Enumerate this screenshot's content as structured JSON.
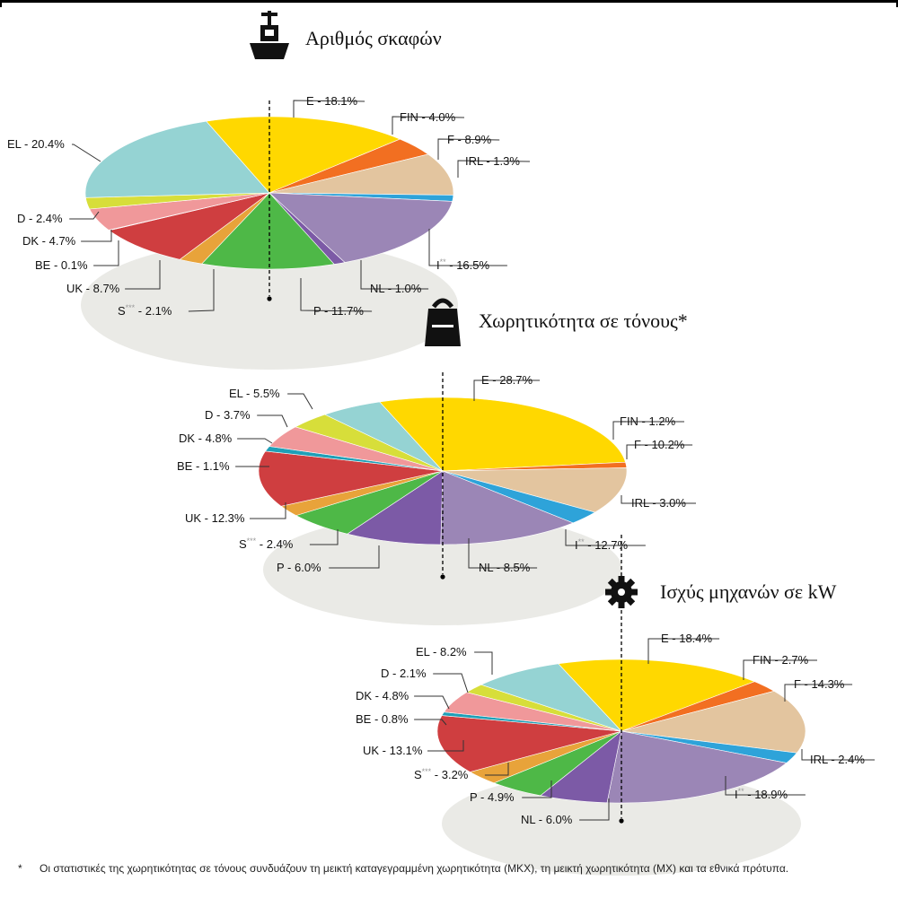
{
  "colors": {
    "E": "#ffd800",
    "FIN": "#f26f21",
    "F": "#e3c59f",
    "IRL": "#2ea3d9",
    "I": "#9b86b6",
    "NL": "#7c5aa6",
    "P": "#4eb847",
    "S": "#e8a33a",
    "UK": "#cf3e40",
    "BE": "#1f9fb7",
    "DK": "#f0989a",
    "D": "#d7de3a",
    "EL": "#95d3d3",
    "shadow": "#eaeae6"
  },
  "chart_data": [
    {
      "type": "pie",
      "title": "Αριθμός σκαφών",
      "icon": "boat-icon",
      "slices": [
        {
          "code": "E",
          "label": "E - 18.1%",
          "value": 18.1
        },
        {
          "code": "FIN",
          "label": "FIN - 4.0%",
          "value": 4.0
        },
        {
          "code": "F",
          "label": "F - 8.9%",
          "value": 8.9
        },
        {
          "code": "IRL",
          "label": "IRL - 1.3%",
          "value": 1.3
        },
        {
          "code": "I",
          "label": "I",
          "sup": "**",
          "tail": " - 16.5%",
          "value": 16.5
        },
        {
          "code": "NL",
          "label": "NL - 1.0%",
          "value": 1.0
        },
        {
          "code": "P",
          "label": "P - 11.7%",
          "value": 11.7
        },
        {
          "code": "S",
          "label": "S",
          "sup": "***",
          "tail": " - 2.1%",
          "value": 2.1
        },
        {
          "code": "UK",
          "label": "UK - 8.7%",
          "value": 8.7
        },
        {
          "code": "BE",
          "label": "BE - 0.1%",
          "value": 0.1
        },
        {
          "code": "DK",
          "label": "DK - 4.7%",
          "value": 4.7
        },
        {
          "code": "D",
          "label": "D - 2.4%",
          "value": 2.4
        },
        {
          "code": "EL",
          "label": "EL - 20.4%",
          "value": 20.4
        }
      ]
    },
    {
      "type": "pie",
      "title": "Χωρητικότητα σε τόνους*",
      "icon": "weight-icon",
      "slices": [
        {
          "code": "E",
          "label": "E - 28.7%",
          "value": 28.7
        },
        {
          "code": "FIN",
          "label": "FIN - 1.2%",
          "value": 1.2
        },
        {
          "code": "F",
          "label": "F - 10.2%",
          "value": 10.2
        },
        {
          "code": "IRL",
          "label": "IRL - 3.0%",
          "value": 3.0
        },
        {
          "code": "I",
          "label": "I",
          "sup": "**",
          "tail": " - 12.7%",
          "value": 12.7
        },
        {
          "code": "NL",
          "label": "NL - 8.5%",
          "value": 8.5
        },
        {
          "code": "P",
          "label": "P - 6.0%",
          "value": 6.0
        },
        {
          "code": "S",
          "label": "S",
          "sup": "***",
          "tail": " - 2.4%",
          "value": 2.4
        },
        {
          "code": "UK",
          "label": "UK - 12.3%",
          "value": 12.3
        },
        {
          "code": "BE",
          "label": "BE - 1.1%",
          "value": 1.1
        },
        {
          "code": "DK",
          "label": "DK - 4.8%",
          "value": 4.8
        },
        {
          "code": "D",
          "label": "D - 3.7%",
          "value": 3.7
        },
        {
          "code": "EL",
          "label": "EL - 5.5%",
          "value": 5.5
        }
      ]
    },
    {
      "type": "pie",
      "title": "Ισχύς μηχανών σε kW",
      "icon": "gear-icon",
      "slices": [
        {
          "code": "E",
          "label": "E - 18.4%",
          "value": 18.4
        },
        {
          "code": "FIN",
          "label": "FIN - 2.7%",
          "value": 2.7
        },
        {
          "code": "F",
          "label": "F - 14.3%",
          "value": 14.3
        },
        {
          "code": "IRL",
          "label": "IRL - 2.4%",
          "value": 2.4
        },
        {
          "code": "I",
          "label": "I",
          "sup": "**",
          "tail": " - 18.9%",
          "value": 18.9
        },
        {
          "code": "NL",
          "label": "NL - 6.0%",
          "value": 6.0
        },
        {
          "code": "P",
          "label": "P - 4.9%",
          "value": 4.9
        },
        {
          "code": "S",
          "label": "S",
          "sup": "***",
          "tail": " - 3.2%",
          "value": 3.2
        },
        {
          "code": "UK",
          "label": "UK - 13.1%",
          "value": 13.1
        },
        {
          "code": "BE",
          "label": "BE - 0.8%",
          "value": 0.8
        },
        {
          "code": "DK",
          "label": "DK - 4.8%",
          "value": 4.8
        },
        {
          "code": "D",
          "label": "D - 2.1%",
          "value": 2.1
        },
        {
          "code": "EL",
          "label": "EL - 8.2%",
          "value": 8.2
        }
      ]
    }
  ],
  "footnote": {
    "mark": "*",
    "text": "Οι στατιστικές της χωρητικότητας σε τόνους συνδυάζουν τη μεικτή καταγεγραμμένη χωρητικότητα (ΜΚΧ), τη μεικτή χωρητικότητα (ΜΧ) και τα εθνικά πρότυπα."
  }
}
